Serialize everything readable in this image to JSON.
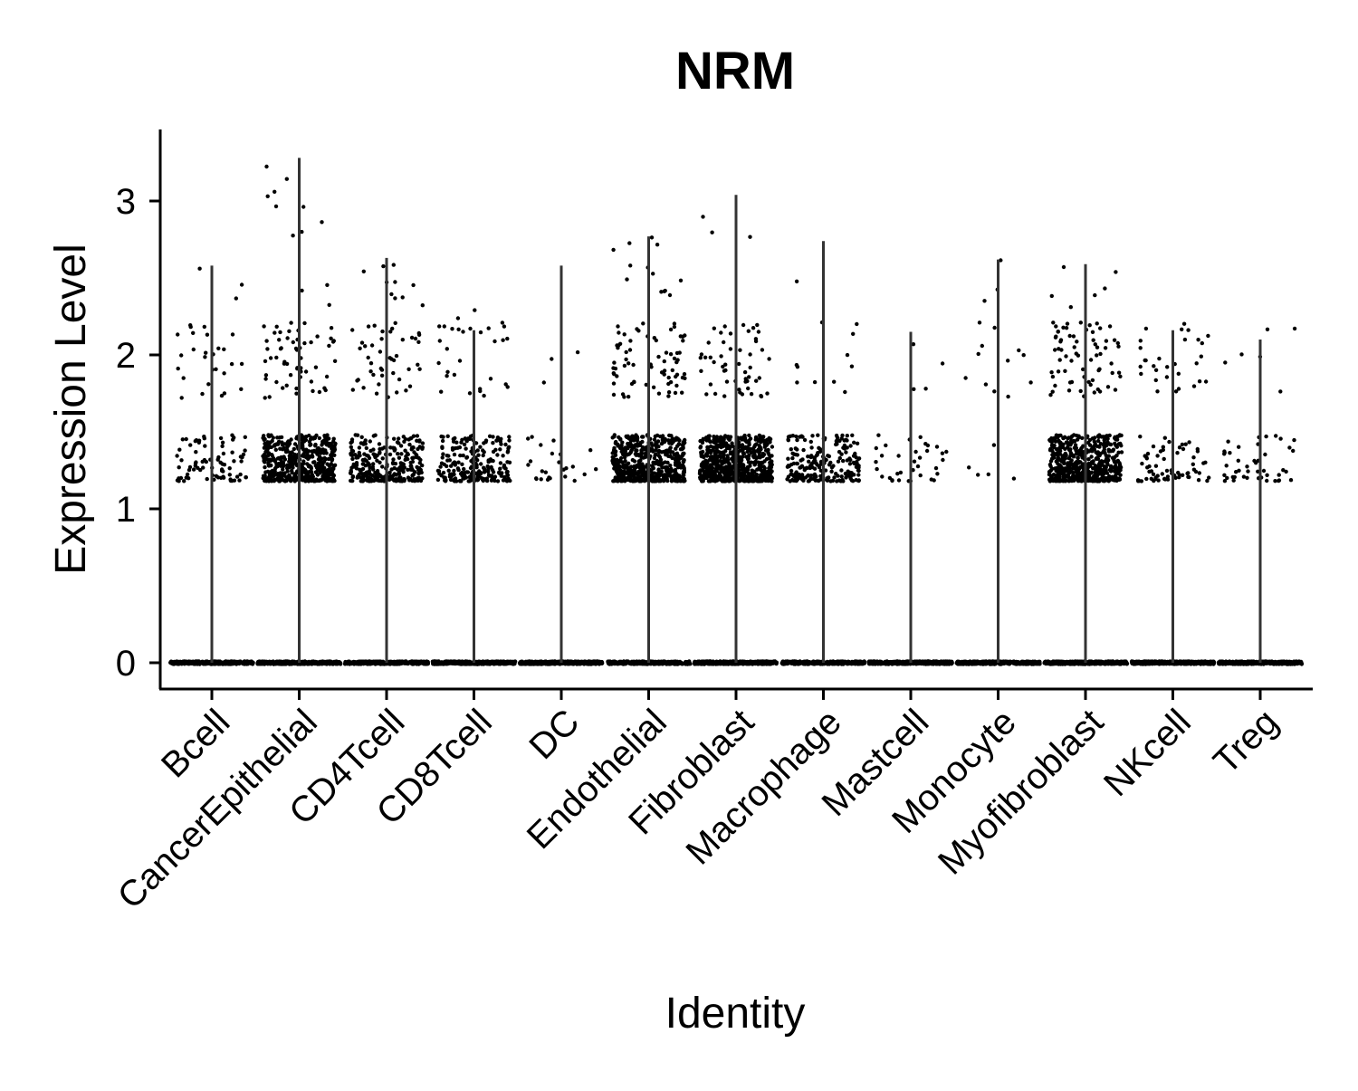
{
  "chart_data": {
    "type": "violin",
    "title": "NRM",
    "xlabel": "Identity",
    "ylabel": "Expression Level",
    "ylim": [
      -0.17,
      3.45
    ],
    "yticks": [
      "0",
      "1",
      "2",
      "3"
    ],
    "grid": false,
    "legend": "none",
    "colors": {
      "points": "#000000",
      "violin_line": "#333333",
      "axis": "#000000"
    },
    "categories": [
      "Bcell",
      "CancerEpithelial",
      "CD4Tcell",
      "CD8Tcell",
      "DC",
      "Endothelial",
      "Fibroblast",
      "Macrophage",
      "Mastcell",
      "Monocyte",
      "Myofibroblast",
      "NKcell",
      "Treg"
    ],
    "max_expression": [
      2.58,
      3.28,
      2.63,
      2.16,
      2.58,
      2.77,
      3.04,
      2.74,
      2.15,
      2.62,
      2.59,
      2.16,
      2.1
    ],
    "mid_band_points": [
      80,
      500,
      280,
      230,
      25,
      550,
      650,
      220,
      35,
      5,
      560,
      70,
      45
    ],
    "upper_points": [
      30,
      70,
      55,
      30,
      3,
      85,
      55,
      12,
      4,
      15,
      75,
      30,
      6
    ],
    "zero_points": [
      400,
      400,
      400,
      400,
      400,
      400,
      400,
      400,
      400,
      400,
      400,
      400,
      400
    ]
  }
}
